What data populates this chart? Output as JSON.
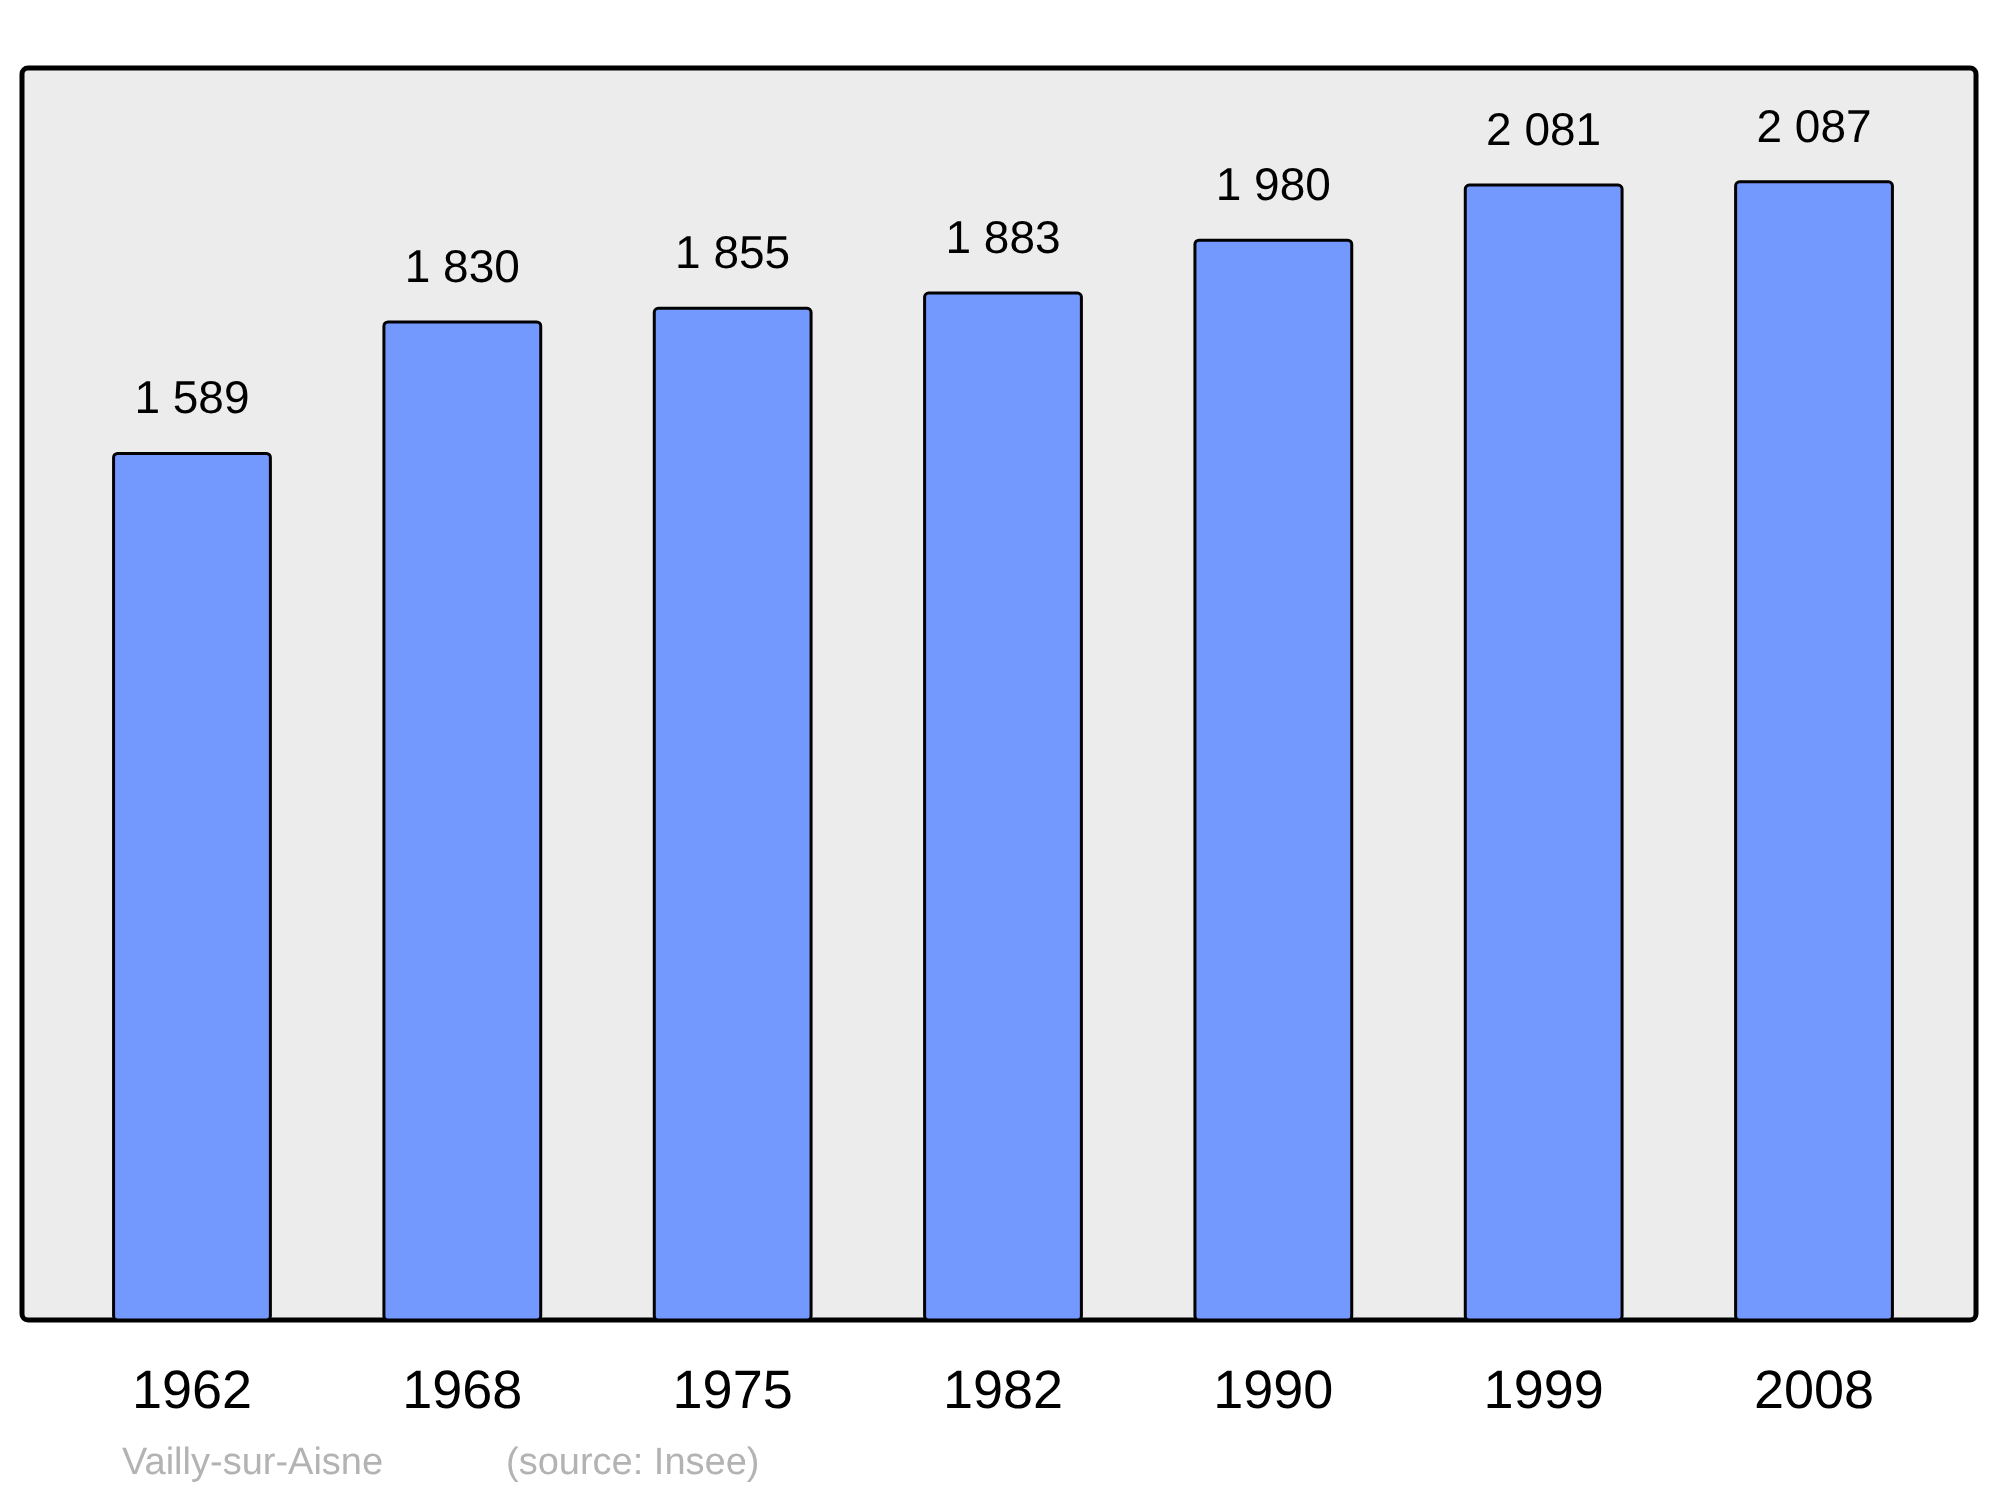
{
  "chart_data": {
    "type": "bar",
    "categories": [
      "1962",
      "1968",
      "1975",
      "1982",
      "1990",
      "1999",
      "2008"
    ],
    "values": [
      1589,
      1830,
      1855,
      1883,
      1980,
      2081,
      2087
    ],
    "value_labels": [
      "1 589",
      "1 830",
      "1 855",
      "1 883",
      "1 980",
      "2 081",
      "2 087"
    ],
    "color": "#7399ff",
    "annotations": [
      "Vailly-sur-Aisne",
      "(source: Insee)"
    ]
  }
}
